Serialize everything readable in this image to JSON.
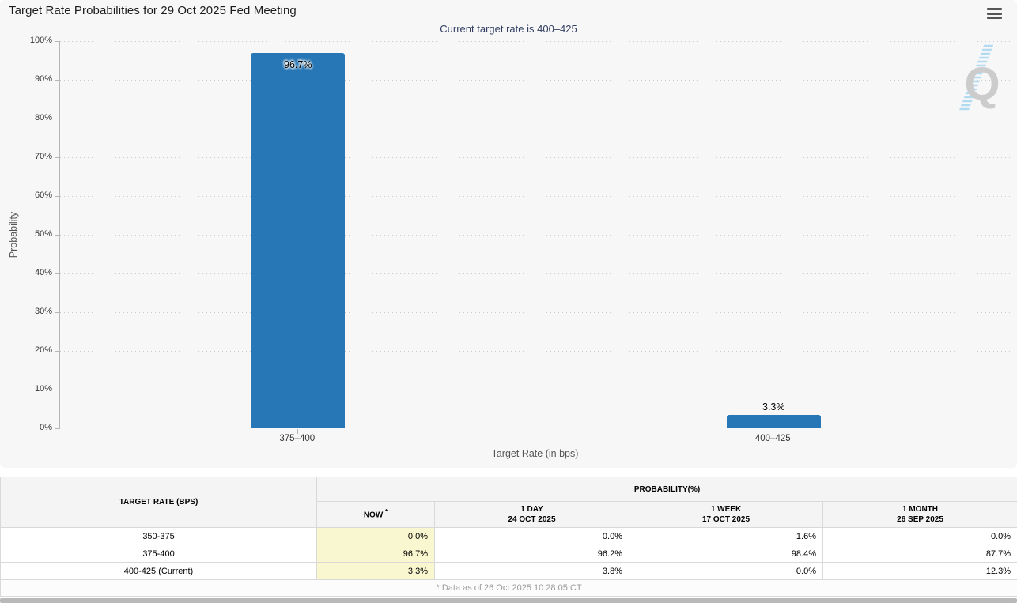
{
  "header": {
    "menu_icon": "hamburger-icon"
  },
  "watermark": {
    "letter": "Q"
  },
  "chart_data": {
    "type": "bar",
    "title": "Target Rate Probabilities for 29 Oct 2025 Fed Meeting",
    "subtitle": "Current target rate is 400–425",
    "categories": [
      "375–400",
      "400–425"
    ],
    "values": [
      96.7,
      3.3
    ],
    "bar_labels": [
      "96.7%",
      "3.3%"
    ],
    "xlabel": "Target Rate (in bps)",
    "ylabel": "Probability",
    "ylim": [
      0,
      100
    ],
    "ytick_step": 10,
    "ytick_labels": [
      "0%",
      "10%",
      "20%",
      "30%",
      "40%",
      "50%",
      "60%",
      "70%",
      "80%",
      "90%",
      "100%"
    ],
    "legend": "none",
    "grid": "horizontal-dotted",
    "bar_color": "#2776b5"
  },
  "table": {
    "col1_header": "TARGET RATE (BPS)",
    "group_header": "PROBABILITY(%)",
    "columns": [
      {
        "label": "NOW",
        "sup": "*",
        "sub": ""
      },
      {
        "label": "1 DAY",
        "sub": "24 OCT 2025"
      },
      {
        "label": "1 WEEK",
        "sub": "17 OCT 2025"
      },
      {
        "label": "1 MONTH",
        "sub": "26 SEP 2025"
      }
    ],
    "rows": [
      {
        "rate": "350-375",
        "now": "0.0%",
        "day": "0.0%",
        "week": "1.6%",
        "month": "0.0%"
      },
      {
        "rate": "375-400",
        "now": "96.7%",
        "day": "96.2%",
        "week": "98.4%",
        "month": "87.7%"
      },
      {
        "rate": "400-425 (Current)",
        "now": "3.3%",
        "day": "3.8%",
        "week": "0.0%",
        "month": "12.3%"
      }
    ],
    "footnote": "* Data as of 26 Oct 2025 10:28:05 CT"
  },
  "colors": {
    "accent_navy": "#333f63",
    "highlight_yellow": "#f9f7cf",
    "bar_blue": "#2776b5"
  }
}
